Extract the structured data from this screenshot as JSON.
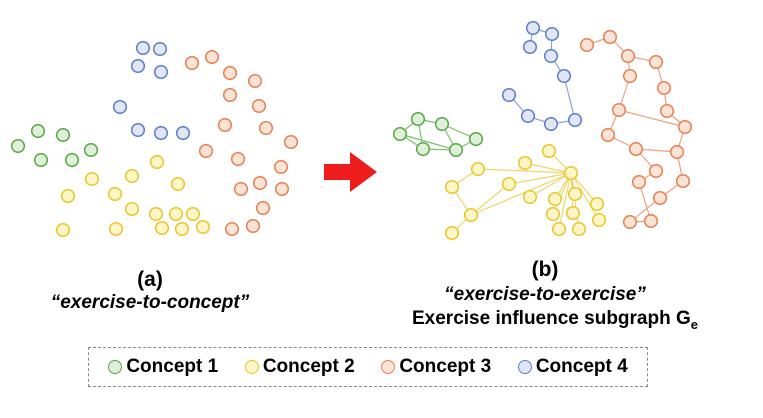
{
  "colors": {
    "c1": {
      "fill": "#dff0d8",
      "stroke": "#5aa54a",
      "edge": "#7cbf6c"
    },
    "c2": {
      "fill": "#fff6c8",
      "stroke": "#e8c62b",
      "edge": "#efd668"
    },
    "c3": {
      "fill": "#fbe4d6",
      "stroke": "#e58052",
      "edge": "#eda182"
    },
    "c4": {
      "fill": "#e0e6f6",
      "stroke": "#5a7ec8",
      "edge": "#8aa3d8"
    },
    "arrow": "#ee1c1c"
  },
  "panel_a": {
    "label": "(a)",
    "subtitle": "“exercise-to-concept”"
  },
  "panel_b": {
    "label": "(b)",
    "subtitle": "“exercise-to-exercise”",
    "description": "Exercise influence subgraph G",
    "description_sub": "e"
  },
  "legend": {
    "items": [
      {
        "label": "Concept 1",
        "concept": "c1"
      },
      {
        "label": "Concept 2",
        "concept": "c2"
      },
      {
        "label": "Concept 3",
        "concept": "c3"
      },
      {
        "label": "Concept 4",
        "concept": "c4"
      }
    ]
  }
}
